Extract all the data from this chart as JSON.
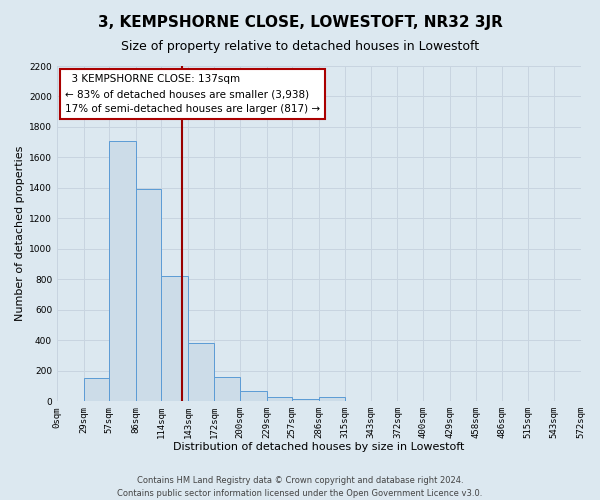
{
  "title": "3, KEMPSHORNE CLOSE, LOWESTOFT, NR32 3JR",
  "subtitle": "Size of property relative to detached houses in Lowestoft",
  "xlabel": "Distribution of detached houses by size in Lowestoft",
  "ylabel": "Number of detached properties",
  "bar_color": "#ccdce8",
  "bar_edge_color": "#5b9bd5",
  "bin_labels": [
    "0sqm",
    "29sqm",
    "57sqm",
    "86sqm",
    "114sqm",
    "143sqm",
    "172sqm",
    "200sqm",
    "229sqm",
    "257sqm",
    "286sqm",
    "315sqm",
    "343sqm",
    "372sqm",
    "400sqm",
    "429sqm",
    "458sqm",
    "486sqm",
    "515sqm",
    "543sqm",
    "572sqm"
  ],
  "bin_edges": [
    0,
    29,
    57,
    86,
    114,
    143,
    172,
    200,
    229,
    257,
    286,
    315,
    343,
    372,
    400,
    429,
    458,
    486,
    515,
    543,
    572
  ],
  "bar_heights": [
    0,
    155,
    1710,
    1390,
    825,
    385,
    160,
    65,
    25,
    15,
    25,
    0,
    0,
    0,
    0,
    0,
    0,
    0,
    0,
    0
  ],
  "ylim": [
    0,
    2200
  ],
  "yticks": [
    0,
    200,
    400,
    600,
    800,
    1000,
    1200,
    1400,
    1600,
    1800,
    2000,
    2200
  ],
  "property_size": 137,
  "vline_color": "#990000",
  "annotation_title": "3 KEMPSHORNE CLOSE: 137sqm",
  "annotation_line1": "← 83% of detached houses are smaller (3,938)",
  "annotation_line2": "17% of semi-detached houses are larger (817) →",
  "annotation_box_facecolor": "#ffffff",
  "annotation_box_edgecolor": "#aa0000",
  "grid_color": "#c8d4e0",
  "background_color": "#dce8f0",
  "footer_line1": "Contains HM Land Registry data © Crown copyright and database right 2024.",
  "footer_line2": "Contains public sector information licensed under the Open Government Licence v3.0.",
  "title_fontsize": 11,
  "subtitle_fontsize": 9,
  "axis_label_fontsize": 8,
  "tick_fontsize": 6.5,
  "annotation_fontsize": 7.5,
  "footer_fontsize": 6
}
